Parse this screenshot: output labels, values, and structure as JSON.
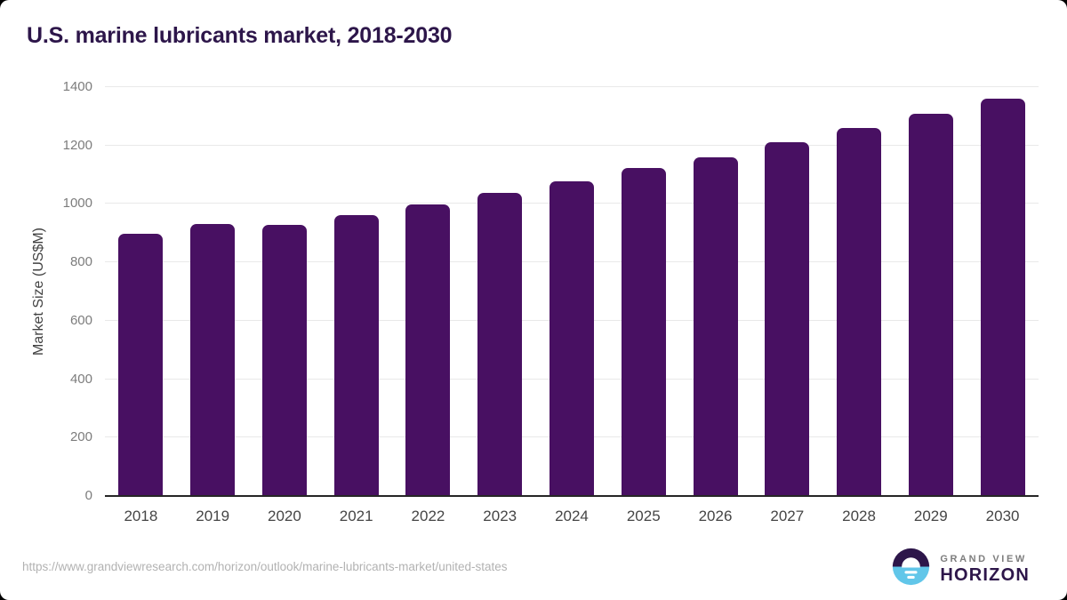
{
  "page": {
    "title": "U.S. marine lubricants market, 2018-2030"
  },
  "chart_data": {
    "type": "bar",
    "title": "U.S. marine lubricants market, 2018-2030",
    "categories": [
      "2018",
      "2019",
      "2020",
      "2021",
      "2022",
      "2023",
      "2024",
      "2025",
      "2026",
      "2027",
      "2028",
      "2029",
      "2030"
    ],
    "values": [
      897,
      931,
      928,
      963,
      998,
      1038,
      1077,
      1122,
      1161,
      1210,
      1259,
      1309,
      1360
    ],
    "xlabel": "",
    "ylabel": "Market Size (US$M)",
    "ylim": [
      0,
      1400
    ],
    "yticks": [
      0,
      200,
      400,
      600,
      800,
      1000,
      1200,
      1400
    ],
    "grid": "horizontal",
    "legend": "none",
    "bar_color": "#481062"
  },
  "footer": {
    "source_url": "https://www.grandviewresearch.com/horizon/outlook/marine-lubricants-market/united-states",
    "logo": {
      "line1": "GRAND VIEW",
      "line2": "HORIZON",
      "mark": "horizon-sun-over-water-icon"
    }
  },
  "colors": {
    "bar": "#481062",
    "title": "#2d164a",
    "gridline": "#e9e9e9",
    "axis": "#262626",
    "tick_text": "#7c7c7c",
    "xlabel_text": "#454545",
    "ylabel_text": "#414141",
    "url_text": "#b2b2b2",
    "logo_gray": "#7d7d7d",
    "logo_purple": "#2d164a",
    "logo_blue": "#61c6e9"
  }
}
